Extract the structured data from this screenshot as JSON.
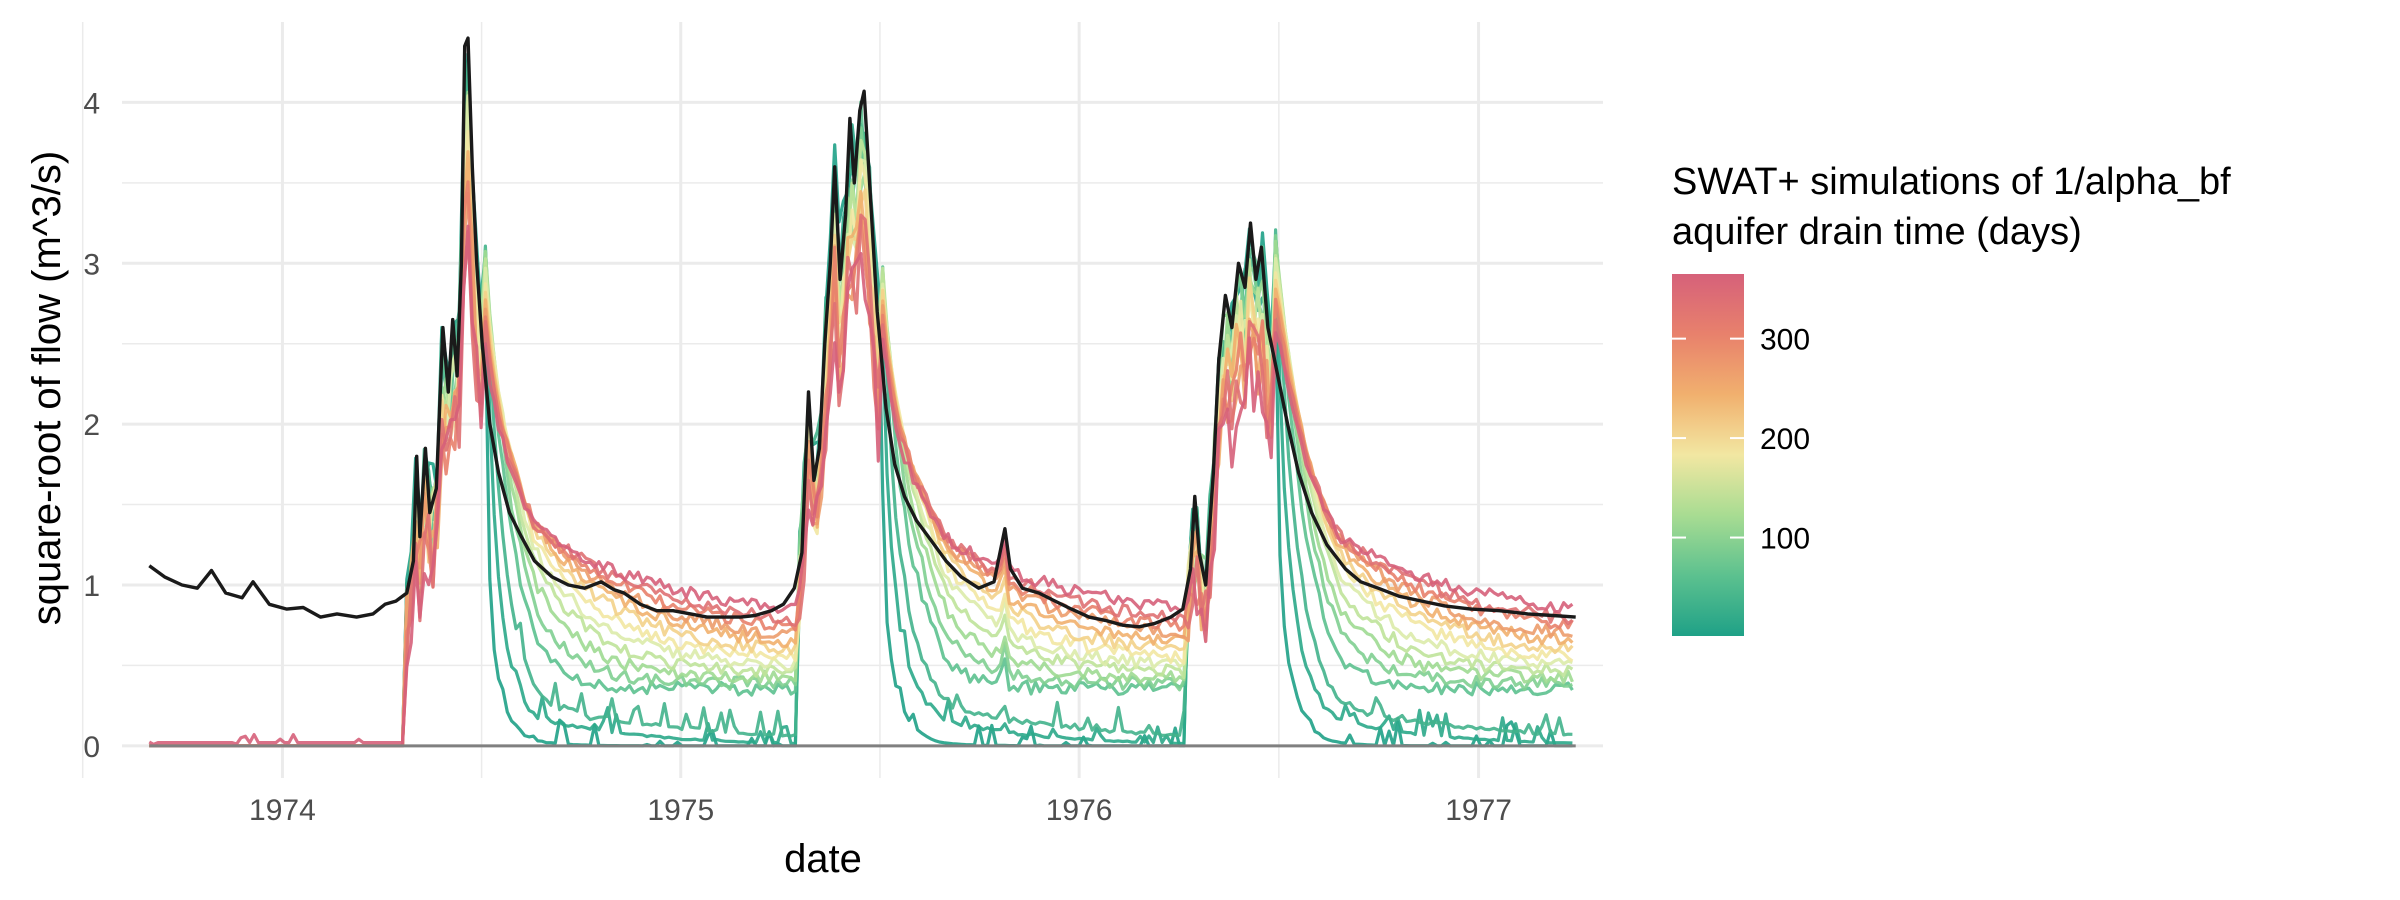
{
  "chart_data": {
    "type": "line",
    "title": "",
    "xlabel": "date",
    "ylabel": "square-root of flow (m^3/s)",
    "x_range": [
      "1973-09-01",
      "1977-03-31"
    ],
    "ylim": [
      -0.2,
      4.5
    ],
    "x_ticks": [
      {
        "label": "1974",
        "date": "1974-01-01"
      },
      {
        "label": "1975",
        "date": "1975-01-01"
      },
      {
        "label": "1976",
        "date": "1976-01-01"
      },
      {
        "label": "1977",
        "date": "1977-01-01"
      }
    ],
    "y_ticks": [
      {
        "label": "0",
        "value": 0
      },
      {
        "label": "1",
        "value": 1
      },
      {
        "label": "2",
        "value": 2
      },
      {
        "label": "3",
        "value": 3
      },
      {
        "label": "4",
        "value": 4
      }
    ],
    "grid": true,
    "legend": {
      "title_lines": [
        "SWAT+ simulations of 1/alpha_bf",
        "aquifer drain time (days)"
      ],
      "position": "right",
      "type": "colorbar",
      "range": [
        1,
        365
      ],
      "ticks": [
        {
          "label": "100",
          "value": 100
        },
        {
          "label": "200",
          "value": 200
        },
        {
          "label": "300",
          "value": 300
        }
      ],
      "colors": [
        "#1fa187",
        "#5cc18f",
        "#a8dc92",
        "#f2e7a2",
        "#f1b06e",
        "#e8816c",
        "#d6617a"
      ]
    },
    "observed_series": {
      "color": "#1a1a1a",
      "points": [
        [
          "1973-09-01",
          1.12
        ],
        [
          "1973-09-15",
          1.05
        ],
        [
          "1973-10-01",
          1.0
        ],
        [
          "1973-10-15",
          0.98
        ],
        [
          "1973-10-28",
          1.09
        ],
        [
          "1973-11-10",
          0.95
        ],
        [
          "1973-11-25",
          0.92
        ],
        [
          "1973-12-05",
          1.02
        ],
        [
          "1973-12-20",
          0.88
        ],
        [
          "1974-01-05",
          0.85
        ],
        [
          "1974-01-20",
          0.86
        ],
        [
          "1974-02-05",
          0.8
        ],
        [
          "1974-02-20",
          0.82
        ],
        [
          "1974-03-10",
          0.8
        ],
        [
          "1974-03-25",
          0.82
        ],
        [
          "1974-04-05",
          0.88
        ],
        [
          "1974-04-15",
          0.9
        ],
        [
          "1974-04-25",
          0.95
        ],
        [
          "1974-05-01",
          1.15
        ],
        [
          "1974-05-04",
          1.8
        ],
        [
          "1974-05-07",
          1.3
        ],
        [
          "1974-05-12",
          1.85
        ],
        [
          "1974-05-16",
          1.45
        ],
        [
          "1974-05-22",
          1.6
        ],
        [
          "1974-05-28",
          2.6
        ],
        [
          "1974-06-02",
          2.2
        ],
        [
          "1974-06-06",
          2.65
        ],
        [
          "1974-06-10",
          2.3
        ],
        [
          "1974-06-14",
          3.0
        ],
        [
          "1974-06-17",
          4.35
        ],
        [
          "1974-06-20",
          4.4
        ],
        [
          "1974-06-24",
          3.6
        ],
        [
          "1974-06-28",
          3.0
        ],
        [
          "1974-07-03",
          2.5
        ],
        [
          "1974-07-10",
          2.0
        ],
        [
          "1974-07-18",
          1.7
        ],
        [
          "1974-07-28",
          1.45
        ],
        [
          "1974-08-08",
          1.3
        ],
        [
          "1974-08-20",
          1.15
        ],
        [
          "1974-09-05",
          1.05
        ],
        [
          "1974-09-20",
          1.0
        ],
        [
          "1974-10-05",
          0.98
        ],
        [
          "1974-10-20",
          1.02
        ],
        [
          "1974-11-01",
          0.97
        ],
        [
          "1974-11-10",
          0.95
        ],
        [
          "1974-11-25",
          0.88
        ],
        [
          "1974-12-10",
          0.84
        ],
        [
          "1974-12-25",
          0.84
        ],
        [
          "1975-01-10",
          0.82
        ],
        [
          "1975-01-25",
          0.8
        ],
        [
          "1975-02-10",
          0.8
        ],
        [
          "1975-02-25",
          0.8
        ],
        [
          "1975-03-10",
          0.81
        ],
        [
          "1975-03-25",
          0.84
        ],
        [
          "1975-04-05",
          0.88
        ],
        [
          "1975-04-15",
          0.98
        ],
        [
          "1975-04-22",
          1.2
        ],
        [
          "1975-04-28",
          2.2
        ],
        [
          "1975-05-03",
          1.65
        ],
        [
          "1975-05-08",
          1.85
        ],
        [
          "1975-05-13",
          2.5
        ],
        [
          "1975-05-18",
          3.0
        ],
        [
          "1975-05-22",
          3.6
        ],
        [
          "1975-05-27",
          2.9
        ],
        [
          "1975-06-01",
          3.3
        ],
        [
          "1975-06-05",
          3.9
        ],
        [
          "1975-06-09",
          3.5
        ],
        [
          "1975-06-14",
          3.95
        ],
        [
          "1975-06-18",
          4.07
        ],
        [
          "1975-06-23",
          3.5
        ],
        [
          "1975-06-30",
          2.7
        ],
        [
          "1975-07-08",
          2.1
        ],
        [
          "1975-07-16",
          1.75
        ],
        [
          "1975-07-25",
          1.55
        ],
        [
          "1975-08-05",
          1.4
        ],
        [
          "1975-08-18",
          1.28
        ],
        [
          "1975-09-01",
          1.15
        ],
        [
          "1975-09-15",
          1.05
        ],
        [
          "1975-10-01",
          0.98
        ],
        [
          "1975-10-15",
          1.02
        ],
        [
          "1975-10-25",
          1.35
        ],
        [
          "1975-10-30",
          1.1
        ],
        [
          "1975-11-10",
          0.98
        ],
        [
          "1975-11-25",
          0.95
        ],
        [
          "1975-12-10",
          0.9
        ],
        [
          "1975-12-25",
          0.85
        ],
        [
          "1976-01-10",
          0.8
        ],
        [
          "1976-01-25",
          0.78
        ],
        [
          "1976-02-10",
          0.75
        ],
        [
          "1976-02-25",
          0.74
        ],
        [
          "1976-03-10",
          0.76
        ],
        [
          "1976-03-25",
          0.8
        ],
        [
          "1976-04-05",
          0.85
        ],
        [
          "1976-04-12",
          1.1
        ],
        [
          "1976-04-16",
          1.55
        ],
        [
          "1976-04-20",
          1.2
        ],
        [
          "1976-04-26",
          1.0
        ],
        [
          "1976-05-03",
          1.7
        ],
        [
          "1976-05-08",
          2.4
        ],
        [
          "1976-05-14",
          2.8
        ],
        [
          "1976-05-20",
          2.6
        ],
        [
          "1976-05-26",
          3.0
        ],
        [
          "1976-06-01",
          2.85
        ],
        [
          "1976-06-06",
          3.25
        ],
        [
          "1976-06-11",
          2.9
        ],
        [
          "1976-06-16",
          3.1
        ],
        [
          "1976-06-22",
          2.6
        ],
        [
          "1976-07-01",
          2.3
        ],
        [
          "1976-07-10",
          2.0
        ],
        [
          "1976-07-20",
          1.7
        ],
        [
          "1976-08-01",
          1.45
        ],
        [
          "1976-08-15",
          1.25
        ],
        [
          "1976-09-01",
          1.1
        ],
        [
          "1976-09-15",
          1.02
        ],
        [
          "1976-10-01",
          0.98
        ],
        [
          "1976-10-20",
          0.93
        ],
        [
          "1976-11-10",
          0.9
        ],
        [
          "1976-12-01",
          0.87
        ],
        [
          "1976-12-25",
          0.85
        ],
        [
          "1977-01-20",
          0.84
        ],
        [
          "1977-02-15",
          0.82
        ],
        [
          "1977-03-10",
          0.81
        ],
        [
          "1977-03-31",
          0.8
        ]
      ]
    },
    "simulated_series": [
      {
        "drain_time_days": 1,
        "color": "#1fa187"
      },
      {
        "drain_time_days": 25,
        "color": "#2ba98a"
      },
      {
        "drain_time_days": 50,
        "color": "#42b38c"
      },
      {
        "drain_time_days": 75,
        "color": "#5cc18f"
      },
      {
        "drain_time_days": 100,
        "color": "#7fcf91"
      },
      {
        "drain_time_days": 125,
        "color": "#9fda92"
      },
      {
        "drain_time_days": 150,
        "color": "#bfe39a"
      },
      {
        "drain_time_days": 175,
        "color": "#dcebaa"
      },
      {
        "drain_time_days": 200,
        "color": "#f2e7a2"
      },
      {
        "drain_time_days": 225,
        "color": "#f3d28a"
      },
      {
        "drain_time_days": 250,
        "color": "#f1b06e"
      },
      {
        "drain_time_days": 275,
        "color": "#ec9c6b"
      },
      {
        "drain_time_days": 300,
        "color": "#e8816c"
      },
      {
        "drain_time_days": 325,
        "color": "#df7173"
      },
      {
        "drain_time_days": 365,
        "color": "#d6617a"
      }
    ],
    "zero_line_color": "#808080",
    "background": "#ffffff",
    "grid_color": "#ebebeb"
  }
}
